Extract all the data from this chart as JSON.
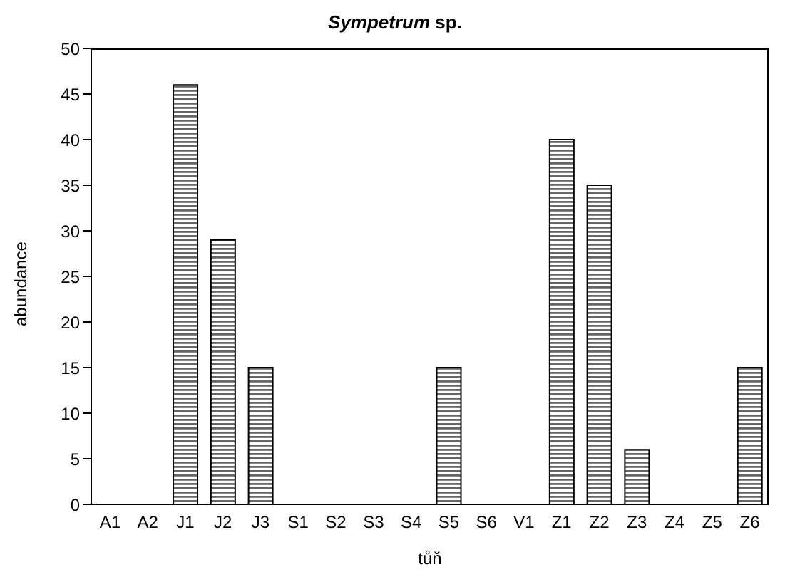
{
  "chart_data": {
    "type": "bar",
    "title": "Sympetrum sp.",
    "xlabel": "tůň",
    "ylabel": "abundance",
    "categories": [
      "A1",
      "A2",
      "J1",
      "J2",
      "J3",
      "S1",
      "S2",
      "S3",
      "S4",
      "S5",
      "S6",
      "V1",
      "Z1",
      "Z2",
      "Z3",
      "Z4",
      "Z5",
      "Z6"
    ],
    "values": [
      0,
      0,
      46,
      29,
      15,
      0,
      0,
      0,
      0,
      15,
      0,
      0,
      40,
      35,
      6,
      0,
      0,
      15
    ],
    "color": "#000000",
    "ylim": [
      0,
      50
    ],
    "yticks": [
      0,
      5,
      10,
      15,
      20,
      25,
      30,
      35,
      40,
      45,
      50
    ],
    "grid": false
  }
}
